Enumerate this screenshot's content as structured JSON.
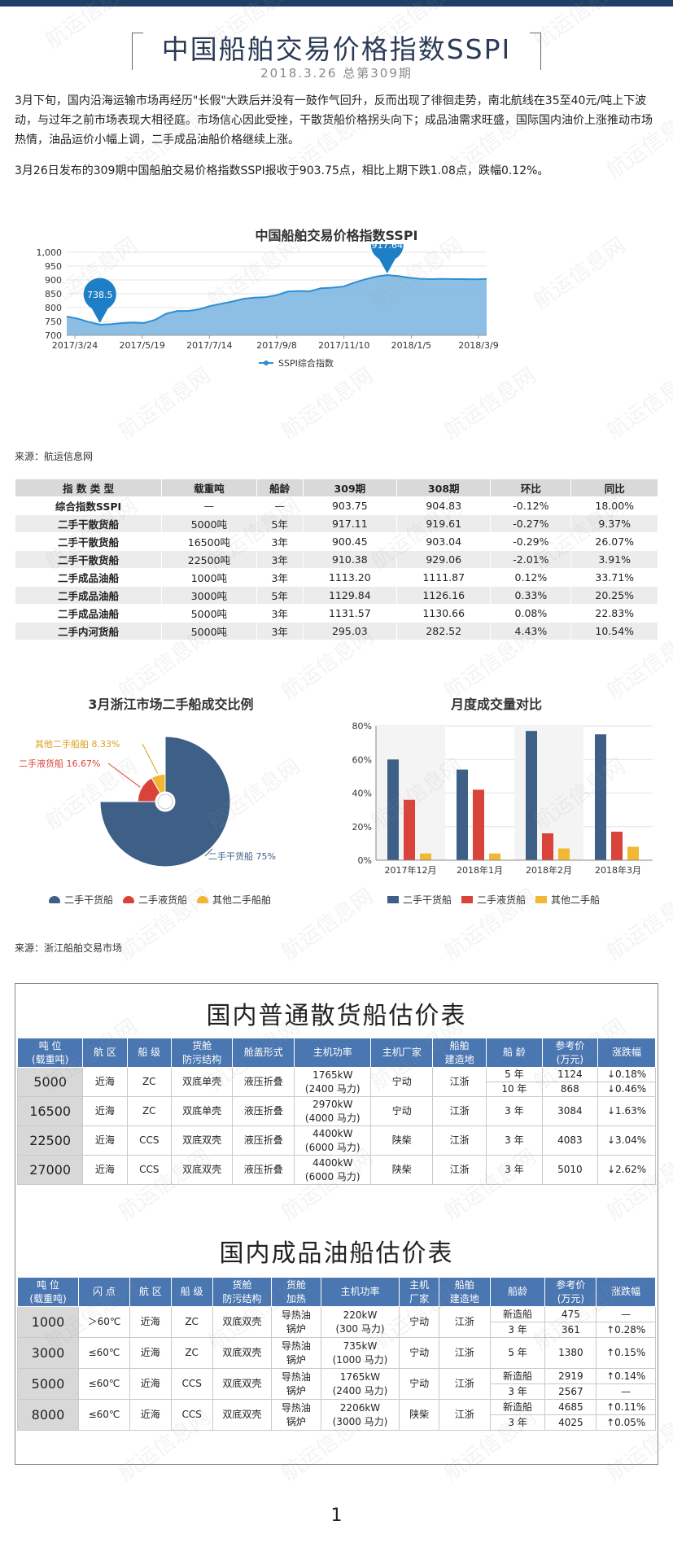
{
  "header": {
    "title": "中国船舶交易价格指数SSPI",
    "subtitle": "2018.3.26 总第309期"
  },
  "paragraphs": [
    "3月下旬，国内沿海运输市场再经历\"长假\"大跌后并没有一鼓作气回升，反而出现了徘徊走势，南北航线在35至40元/吨上下波动，与过年之前市场表现大相径庭。市场信心因此受挫，干散货船价格拐头向下；成品油需求旺盛，国际国内油价上涨推动市场热情，油品运价小幅上调，二手成品油船价格继续上涨。",
    "3月26日发布的309期中国船舶交易价格指数SSPI报收于903.75点，相比上期下跌1.08点，跌幅0.12%。"
  ],
  "colors": {
    "navy": "#1f3f67",
    "area_fill": "#7fb8e0",
    "line": "#2c8fd4",
    "pie_main": "#3e5f86",
    "pie_red": "#d9433a",
    "pie_yellow": "#f2b733",
    "table_header_blue": "#4a76b1"
  },
  "line_chart": {
    "chart_data": {
      "type": "area",
      "title": "中国船舶交易价格指数SSPI",
      "ylim": [
        700,
        1000
      ],
      "yticks": [
        "1,000",
        "950",
        "900",
        "850",
        "800",
        "750",
        "700"
      ],
      "xtick_labels": [
        "2017/3/24",
        "2017/5/19",
        "2017/7/14",
        "2017/9/8",
        "2017/11/10",
        "2018/1/5",
        "2018/3/9"
      ],
      "series_name": "SSPI综合指数",
      "values": [
        768,
        760,
        748,
        738.5,
        740,
        744,
        746,
        744,
        756,
        778,
        788,
        788,
        794,
        806,
        814,
        822,
        832,
        836,
        838,
        845,
        858,
        860,
        859,
        870,
        872,
        876,
        890,
        902,
        912,
        917.64,
        914,
        908,
        904,
        903,
        904,
        903,
        903,
        902,
        903.75
      ],
      "min_label": "738.5",
      "max_label": "917.64"
    },
    "source": "来源：航运信息网"
  },
  "index_table": {
    "headers": [
      "指 数 类 型",
      "载重吨",
      "船龄",
      "309期",
      "308期",
      "环比",
      "同比"
    ],
    "rows": [
      [
        "综合指数SSPI",
        "—",
        "—",
        "903.75",
        "904.83",
        "-0.12%",
        "18.00%"
      ],
      [
        "二手干散货船",
        "5000吨",
        "5年",
        "917.11",
        "919.61",
        "-0.27%",
        "9.37%"
      ],
      [
        "二手干散货船",
        "16500吨",
        "3年",
        "900.45",
        "903.04",
        "-0.29%",
        "26.07%"
      ],
      [
        "二手干散货船",
        "22500吨",
        "3年",
        "910.38",
        "929.06",
        "-2.01%",
        "3.91%"
      ],
      [
        "二手成品油船",
        "1000吨",
        "3年",
        "1113.20",
        "1111.87",
        "0.12%",
        "33.71%"
      ],
      [
        "二手成品油船",
        "3000吨",
        "5年",
        "1129.84",
        "1126.16",
        "0.33%",
        "20.25%"
      ],
      [
        "二手成品油船",
        "5000吨",
        "3年",
        "1131.57",
        "1130.66",
        "0.08%",
        "22.83%"
      ],
      [
        "二手内河货船",
        "5000吨",
        "3年",
        "295.03",
        "282.52",
        "4.43%",
        "10.54%"
      ]
    ]
  },
  "pie_chart": {
    "chart_data": {
      "type": "pie",
      "title": "3月浙江市场二手船成交比例",
      "slices": [
        {
          "name": "二手干货船",
          "value": 75,
          "label": "二手干货船 75%"
        },
        {
          "name": "二手液货船",
          "value": 16.67,
          "label": "二手液货船 16.67%"
        },
        {
          "name": "其他二手船舶",
          "value": 8.33,
          "label": "其他二手船舶 8.33%"
        }
      ]
    },
    "legend": [
      "二手干货船",
      "二手液货船",
      "其他二手船舶"
    ]
  },
  "bar_chart": {
    "chart_data": {
      "type": "bar",
      "title": "月度成交量对比",
      "categories": [
        "2017年12月",
        "2018年1月",
        "2018年2月",
        "2018年3月"
      ],
      "series": [
        {
          "name": "二手干货船",
          "values": [
            60,
            54,
            77,
            75
          ]
        },
        {
          "name": "二手液货船",
          "values": [
            36,
            42,
            16,
            17
          ]
        },
        {
          "name": "其他二手船",
          "values": [
            4,
            4,
            7,
            8
          ]
        }
      ],
      "ylim": [
        0,
        80
      ],
      "yticks": [
        "80%",
        "60%",
        "40%",
        "20%",
        "0%"
      ]
    },
    "legend": [
      "二手干货船",
      "二手液货船",
      "其他二手船"
    ]
  },
  "source2": "来源：浙江船舶交易市场",
  "bulk_table": {
    "title": "国内普通散货船估价表",
    "headers": [
      [
        "吨 位",
        "(载重吨)"
      ],
      [
        "航 区"
      ],
      [
        "船 级"
      ],
      [
        "货舱",
        "防污结构"
      ],
      [
        "舱盖形式"
      ],
      [
        "主机功率"
      ],
      [
        "主机厂家"
      ],
      [
        "船舶",
        "建造地"
      ],
      [
        "船 龄"
      ],
      [
        "参考价",
        "(万元)"
      ],
      [
        "涨跌幅"
      ]
    ],
    "groups": [
      {
        "tonnage": "5000",
        "area": "近海",
        "class": "ZC",
        "hold": "双底单壳",
        "hatch": "液压折叠",
        "power": [
          "1765kW",
          "(2400 马力)"
        ],
        "maker": "宁动",
        "built": "江浙",
        "rows": [
          {
            "age": "5 年",
            "price": "1124",
            "change": "↓0.18%"
          },
          {
            "age": "10 年",
            "price": "868",
            "change": "↓0.46%"
          }
        ]
      },
      {
        "tonnage": "16500",
        "area": "近海",
        "class": "ZC",
        "hold": "双底单壳",
        "hatch": "液压折叠",
        "power": [
          "2970kW",
          "(4000 马力)"
        ],
        "maker": "宁动",
        "built": "江浙",
        "rows": [
          {
            "age": "3 年",
            "price": "3084",
            "change": "↓1.63%"
          }
        ]
      },
      {
        "tonnage": "22500",
        "area": "近海",
        "class": "CCS",
        "hold": "双底双壳",
        "hatch": "液压折叠",
        "power": [
          "4400kW",
          "(6000 马力)"
        ],
        "maker": "陕柴",
        "built": "江浙",
        "rows": [
          {
            "age": "3 年",
            "price": "4083",
            "change": "↓3.04%"
          }
        ]
      },
      {
        "tonnage": "27000",
        "area": "近海",
        "class": "CCS",
        "hold": "双底双壳",
        "hatch": "液压折叠",
        "power": [
          "4400kW",
          "(6000 马力)"
        ],
        "maker": "陕柴",
        "built": "江浙",
        "rows": [
          {
            "age": "3 年",
            "price": "5010",
            "change": "↓2.62%"
          }
        ]
      }
    ]
  },
  "tanker_table": {
    "title": "国内成品油船估价表",
    "headers": [
      [
        "吨 位",
        "(载重吨)"
      ],
      [
        "闪 点"
      ],
      [
        "航 区"
      ],
      [
        "船 级"
      ],
      [
        "货舱",
        "防污结构"
      ],
      [
        "货舱",
        "加热"
      ],
      [
        "主机功率"
      ],
      [
        "主机",
        "厂家"
      ],
      [
        "船舶",
        "建造地"
      ],
      [
        "船龄"
      ],
      [
        "参考价",
        "(万元)"
      ],
      [
        "涨跌幅"
      ]
    ],
    "groups": [
      {
        "tonnage": "1000",
        "flash": "＞60℃",
        "area": "近海",
        "class": "ZC",
        "hold": "双底双壳",
        "heat": [
          "导热油",
          "锅炉"
        ],
        "power": [
          "220kW",
          "(300 马力)"
        ],
        "maker": "宁动",
        "built": "江浙",
        "rows": [
          {
            "age": "新造船",
            "price": "475",
            "change": "—"
          },
          {
            "age": "3 年",
            "price": "361",
            "change": "↑0.28%"
          }
        ]
      },
      {
        "tonnage": "3000",
        "flash": "≤60℃",
        "area": "近海",
        "class": "ZC",
        "hold": "双底双壳",
        "heat": [
          "导热油",
          "锅炉"
        ],
        "power": [
          "735kW",
          "(1000 马力)"
        ],
        "maker": "宁动",
        "built": "江浙",
        "rows": [
          {
            "age": "5 年",
            "price": "1380",
            "change": "↑0.15%"
          }
        ]
      },
      {
        "tonnage": "5000",
        "flash": "≤60℃",
        "area": "近海",
        "class": "CCS",
        "hold": "双底双壳",
        "heat": [
          "导热油",
          "锅炉"
        ],
        "power": [
          "1765kW",
          "(2400 马力)"
        ],
        "maker": "宁动",
        "built": "江浙",
        "rows": [
          {
            "age": "新造船",
            "price": "2919",
            "change": "↑0.14%"
          },
          {
            "age": "3 年",
            "price": "2567",
            "change": "—"
          }
        ]
      },
      {
        "tonnage": "8000",
        "flash": "≤60℃",
        "area": "近海",
        "class": "CCS",
        "hold": "双底双壳",
        "heat": [
          "导热油",
          "锅炉"
        ],
        "power": [
          "2206kW",
          "(3000 马力)"
        ],
        "maker": "陕柴",
        "built": "江浙",
        "rows": [
          {
            "age": "新造船",
            "price": "4685",
            "change": "↑0.11%"
          },
          {
            "age": "3 年",
            "price": "4025",
            "change": "↑0.05%"
          }
        ]
      }
    ]
  },
  "watermark": "航运信息网",
  "page_number": "1"
}
